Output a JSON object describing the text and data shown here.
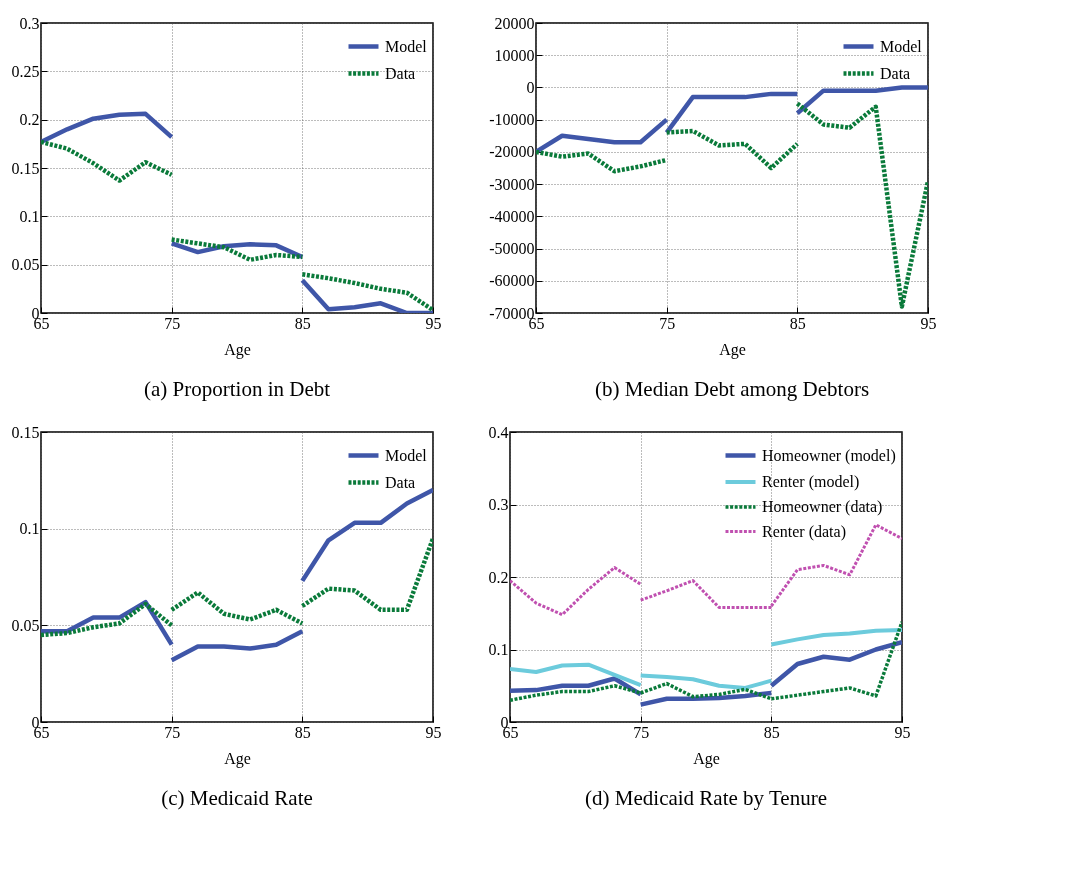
{
  "chart_data": [
    {
      "type": "line",
      "title": "(a) Proportion in Debt",
      "xlabel": "Age",
      "xlim": [
        65,
        95
      ],
      "xticks": [
        65,
        75,
        85,
        95
      ],
      "ylim": [
        0,
        0.3
      ],
      "yticks": [
        0,
        0.05,
        0.1,
        0.15,
        0.2,
        0.25,
        0.3
      ],
      "grid": true,
      "legend": "top right",
      "series": [
        {
          "name": "Model",
          "color": "#3f56a8",
          "line_style": "solid",
          "x": [
            65,
            67,
            69,
            71,
            73,
            75,
            75,
            77,
            79,
            81,
            83,
            85,
            85,
            87,
            89,
            91,
            93,
            95
          ],
          "values": [
            0.177,
            0.19,
            0.201,
            0.205,
            0.206,
            0.182,
            0.072,
            0.063,
            0.069,
            0.071,
            0.07,
            0.058,
            0.034,
            0.004,
            0.006,
            0.01,
            0,
            0
          ]
        },
        {
          "name": "Data",
          "color": "#0a7a3a",
          "line_style": "dotted",
          "x": [
            65,
            67,
            69,
            71,
            73,
            75,
            75,
            77,
            79,
            81,
            83,
            85,
            85,
            87,
            89,
            91,
            93,
            95
          ],
          "values": [
            0.177,
            0.17,
            0.155,
            0.137,
            0.156,
            0.143,
            0.076,
            0.072,
            0.068,
            0.055,
            0.06,
            0.058,
            0.04,
            0.036,
            0.031,
            0.025,
            0.021,
            0.003
          ]
        }
      ]
    },
    {
      "type": "line",
      "title": "(b) Median Debt among Debtors",
      "xlabel": "Age",
      "xlim": [
        65,
        95
      ],
      "xticks": [
        65,
        75,
        85,
        95
      ],
      "ylim": [
        -70000,
        20000
      ],
      "yticks": [
        -70000,
        -60000,
        -50000,
        -40000,
        -30000,
        -20000,
        -10000,
        0,
        10000,
        20000
      ],
      "grid": true,
      "legend": "top right",
      "series": [
        {
          "name": "Model",
          "color": "#3f56a8",
          "line_style": "solid",
          "x": [
            65,
            67,
            69,
            71,
            73,
            75,
            75,
            77,
            79,
            81,
            83,
            85,
            85,
            87,
            89,
            91,
            93,
            95
          ],
          "values": [
            -20000,
            -15000,
            -16000,
            -17000,
            -17000,
            -10000,
            -14000,
            -3000,
            -3000,
            -3000,
            -2000,
            -2000,
            -8000,
            -1000,
            -1000,
            -1000,
            0,
            0
          ]
        },
        {
          "name": "Data",
          "color": "#0a7a3a",
          "line_style": "dotted",
          "x": [
            65,
            67,
            69,
            71,
            73,
            75,
            75,
            77,
            79,
            81,
            83,
            85,
            85,
            87,
            89,
            91,
            93,
            95
          ],
          "values": [
            -20000,
            -21500,
            -20500,
            -26000,
            -24500,
            -22500,
            -14000,
            -13500,
            -18000,
            -17500,
            -25000,
            -17500,
            -5000,
            -11500,
            -12500,
            -6000,
            -68000,
            -29000
          ]
        }
      ]
    },
    {
      "type": "line",
      "title": "(c) Medicaid Rate",
      "xlabel": "Age",
      "xlim": [
        65,
        95
      ],
      "xticks": [
        65,
        75,
        85,
        95
      ],
      "ylim": [
        0,
        0.15
      ],
      "yticks": [
        0,
        0.05,
        0.1,
        0.15
      ],
      "grid": true,
      "legend": "top right",
      "series": [
        {
          "name": "Model",
          "color": "#3f56a8",
          "line_style": "solid",
          "x": [
            65,
            67,
            69,
            71,
            73,
            75,
            75,
            77,
            79,
            81,
            83,
            85,
            85,
            87,
            89,
            91,
            93,
            95
          ],
          "values": [
            0.047,
            0.047,
            0.054,
            0.054,
            0.062,
            0.04,
            0.032,
            0.039,
            0.039,
            0.038,
            0.04,
            0.047,
            0.073,
            0.094,
            0.103,
            0.103,
            0.113,
            0.12
          ]
        },
        {
          "name": "Data",
          "color": "#0a7a3a",
          "line_style": "dotted",
          "x": [
            65,
            67,
            69,
            71,
            73,
            75,
            75,
            77,
            79,
            81,
            83,
            85,
            85,
            87,
            89,
            91,
            93,
            95
          ],
          "values": [
            0.045,
            0.046,
            0.049,
            0.051,
            0.061,
            0.05,
            0.058,
            0.067,
            0.056,
            0.053,
            0.058,
            0.051,
            0.06,
            0.069,
            0.068,
            0.058,
            0.058,
            0.095
          ]
        }
      ]
    },
    {
      "type": "line",
      "title": "(d) Medicaid Rate by Tenure",
      "xlabel": "Age",
      "xlim": [
        65,
        95
      ],
      "xticks": [
        65,
        75,
        85,
        95
      ],
      "ylim": [
        0,
        0.4
      ],
      "yticks": [
        0,
        0.1,
        0.2,
        0.3,
        0.4
      ],
      "grid": true,
      "legend": "top right",
      "series": [
        {
          "name": "Homeowner (model)",
          "color": "#3f56a8",
          "line_style": "solid",
          "x": [
            65,
            67,
            69,
            71,
            73,
            75,
            75,
            77,
            79,
            81,
            83,
            85,
            85,
            87,
            89,
            91,
            93,
            95
          ],
          "values": [
            0.043,
            0.044,
            0.05,
            0.05,
            0.06,
            0.038,
            0.024,
            0.032,
            0.032,
            0.033,
            0.036,
            0.04,
            0.05,
            0.08,
            0.09,
            0.086,
            0.1,
            0.11
          ]
        },
        {
          "name": "Renter (model)",
          "color": "#6ccbdc",
          "line_style": "solid",
          "x": [
            65,
            67,
            69,
            71,
            73,
            75,
            75,
            77,
            79,
            81,
            83,
            85,
            85,
            87,
            89,
            91,
            93,
            95
          ],
          "values": [
            0.073,
            0.069,
            0.078,
            0.079,
            0.065,
            0.051,
            0.064,
            0.062,
            0.059,
            0.05,
            0.047,
            0.057,
            0.107,
            0.114,
            0.12,
            0.122,
            0.126,
            0.127
          ]
        },
        {
          "name": "Homeowner (data)",
          "color": "#0a7a3a",
          "line_style": "dotted",
          "x": [
            65,
            67,
            69,
            71,
            73,
            75,
            75,
            77,
            79,
            81,
            83,
            85,
            85,
            87,
            89,
            91,
            93,
            95
          ],
          "values": [
            0.03,
            0.037,
            0.042,
            0.042,
            0.05,
            0.04,
            0.04,
            0.053,
            0.035,
            0.038,
            0.045,
            0.032,
            0.032,
            0.037,
            0.042,
            0.047,
            0.036,
            0.138
          ]
        },
        {
          "name": "Renter (data)",
          "color": "#c050b0",
          "line_style": "dotted",
          "x": [
            65,
            67,
            69,
            71,
            73,
            75,
            75,
            77,
            79,
            81,
            83,
            85,
            85,
            87,
            89,
            91,
            93,
            95
          ],
          "values": [
            0.195,
            0.164,
            0.148,
            0.183,
            0.213,
            0.19,
            0.168,
            0.181,
            0.195,
            0.158,
            0.158,
            0.158,
            0.16,
            0.21,
            0.216,
            0.203,
            0.272,
            0.253
          ]
        }
      ]
    }
  ]
}
